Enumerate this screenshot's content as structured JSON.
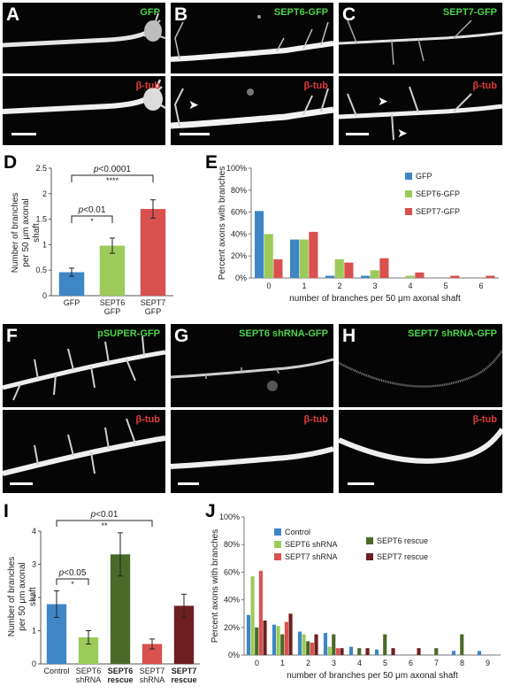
{
  "panels": {
    "A": {
      "letter": "A",
      "top_label": "GFP",
      "bottom_label": "β-tub"
    },
    "B": {
      "letter": "B",
      "top_label": "SEPT6-GFP",
      "bottom_label": "β-tub"
    },
    "C": {
      "letter": "C",
      "top_label": "SEPT7-GFP",
      "bottom_label": "β-tub"
    },
    "F": {
      "letter": "F",
      "top_label": "pSUPER-GFP",
      "bottom_label": "β-tub"
    },
    "G": {
      "letter": "G",
      "top_label": "SEPT6 shRNA-GFP",
      "bottom_label": "β-tub"
    },
    "H": {
      "letter": "H",
      "top_label": "SEPT7 shRNA-GFP",
      "bottom_label": "β-tub"
    },
    "D": {
      "letter": "D"
    },
    "E": {
      "letter": "E"
    },
    "I": {
      "letter": "I"
    },
    "J": {
      "letter": "J"
    }
  },
  "colors": {
    "blue": "#3f86c6",
    "lightgreen": "#9ccb5a",
    "red": "#d9514f",
    "darkgreen": "#4a6a2a",
    "darkred": "#6e1e1e"
  },
  "chart_data": [
    {
      "id": "D",
      "type": "bar",
      "ylabel": "Number of branches per 50 μm axonal shaft",
      "ylim": [
        0,
        2.5
      ],
      "yticks": [
        "0",
        "0.5",
        "1",
        "1.5",
        "2",
        "2.5"
      ],
      "categories": [
        "GFP",
        "SEPT6 GFP",
        "SEPT7 GFP"
      ],
      "values": [
        0.46,
        0.98,
        1.7
      ],
      "errors": [
        0.08,
        0.15,
        0.18
      ],
      "bar_colors": [
        "#3f86c6",
        "#9ccb5a",
        "#d9514f"
      ],
      "annotations": [
        {
          "text": "p<0.0001",
          "stars": "****"
        },
        {
          "text": "p<0.01",
          "stars": "*"
        }
      ]
    },
    {
      "id": "E",
      "type": "bar",
      "ylabel": "Percent axons with branches",
      "xlabel": "number of branches per 50 μm axonal shaft",
      "ylim": [
        0,
        100
      ],
      "yticks": [
        "0%",
        "20%",
        "40%",
        "60%",
        "80%",
        "100%"
      ],
      "categories": [
        "0",
        "1",
        "2",
        "3",
        "4",
        "5",
        "6"
      ],
      "series": [
        {
          "name": "GFP",
          "color": "#3f86c6",
          "values": [
            61,
            35,
            2,
            2,
            0,
            0,
            0
          ]
        },
        {
          "name": "SEPT6-GFP",
          "color": "#9ccb5a",
          "values": [
            40,
            35,
            17,
            7,
            2,
            0,
            0
          ]
        },
        {
          "name": "SEPT7-GFP",
          "color": "#d9514f",
          "values": [
            17,
            42,
            14,
            18,
            5,
            2,
            2
          ]
        }
      ],
      "legend_position": "top-right"
    },
    {
      "id": "I",
      "type": "bar",
      "ylabel": "Number of branches per 50 μm axonal shaft",
      "ylim": [
        0,
        4
      ],
      "yticks": [
        "0",
        "1",
        "2",
        "3",
        "4"
      ],
      "categories": [
        {
          "line1": "Control",
          "line2": "",
          "bold": false
        },
        {
          "line1": "SEPT6",
          "line2": "shRNA",
          "bold": false
        },
        {
          "line1": "SEPT6",
          "line2": "rescue",
          "bold": true
        },
        {
          "line1": "SEPT7",
          "line2": "shRNA",
          "bold": false
        },
        {
          "line1": "SEPT7",
          "line2": "rescue",
          "bold": true
        }
      ],
      "values": [
        1.8,
        0.8,
        3.3,
        0.6,
        1.75
      ],
      "errors": [
        0.4,
        0.2,
        0.65,
        0.15,
        0.35
      ],
      "bar_colors": [
        "#3f86c6",
        "#9ccb5a",
        "#4a6a2a",
        "#d9514f",
        "#6e1e1e"
      ],
      "annotations": [
        {
          "text": "p<0.01",
          "stars": "**"
        },
        {
          "text": "p<0.05",
          "stars": "*"
        }
      ]
    },
    {
      "id": "J",
      "type": "bar",
      "ylabel": "Percent axons with branches",
      "xlabel": "number of branches per 50 μm axonal shaft",
      "ylim": [
        0,
        100
      ],
      "yticks": [
        "0%",
        "20%",
        "40%",
        "60%",
        "80%",
        "100%"
      ],
      "categories": [
        "0",
        "1",
        "2",
        "3",
        "4",
        "5",
        "6",
        "7",
        "8",
        "9"
      ],
      "series": [
        {
          "name": "Control",
          "color": "#3f86c6",
          "values": [
            29,
            22,
            17,
            16,
            6,
            4,
            0,
            0,
            3,
            3
          ]
        },
        {
          "name": "SEPT6 shRNA",
          "color": "#9ccb5a",
          "values": [
            57,
            21,
            15,
            6,
            0,
            0,
            0,
            0,
            0,
            0
          ]
        },
        {
          "name": "SEPT6 rescue",
          "color": "#4a6a2a",
          "values": [
            20,
            15,
            10,
            15,
            5,
            15,
            0,
            5,
            15,
            0
          ]
        },
        {
          "name": "SEPT7 shRNA",
          "color": "#d9514f",
          "values": [
            61,
            24,
            9,
            5,
            0,
            0,
            0,
            0,
            0,
            0
          ]
        },
        {
          "name": "SEPT7 rescue",
          "color": "#6e1e1e",
          "values": [
            25,
            30,
            15,
            5,
            5,
            5,
            5,
            0,
            0,
            0
          ]
        }
      ],
      "legend_position": "top"
    }
  ]
}
